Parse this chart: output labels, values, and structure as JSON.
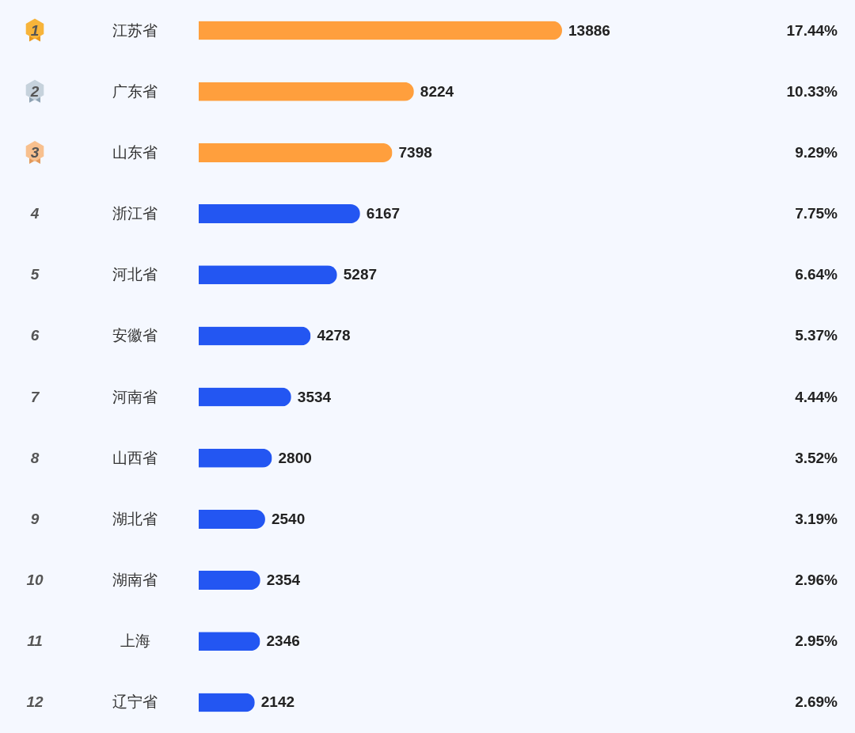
{
  "chart_data": {
    "type": "bar",
    "orientation": "horizontal",
    "data_labels": true,
    "categories": [
      "江苏省",
      "广东省",
      "山东省",
      "浙江省",
      "河北省",
      "安徽省",
      "河南省",
      "山西省",
      "湖北省",
      "湖南省",
      "上海",
      "辽宁省"
    ],
    "values": [
      13886,
      8224,
      7398,
      6167,
      5287,
      4278,
      3534,
      2800,
      2540,
      2354,
      2346,
      2142
    ],
    "colors": [
      "#ff9f3d",
      "#ff9f3d",
      "#ff9f3d",
      "#2356f2",
      "#2356f2",
      "#2356f2",
      "#2356f2",
      "#2356f2",
      "#2356f2",
      "#2356f2",
      "#2356f2",
      "#2356f2"
    ],
    "annotations": [
      "1",
      "2",
      "3",
      "4",
      "5",
      "6",
      "7",
      "8",
      "9",
      "10",
      "11",
      "12",
      "17.44%",
      "10.33%",
      "9.29%",
      "7.75%",
      "6.64%",
      "5.37%",
      "4.44%",
      "3.52%",
      "3.19%",
      "2.96%",
      "2.95%",
      "2.69%"
    ]
  }
}
